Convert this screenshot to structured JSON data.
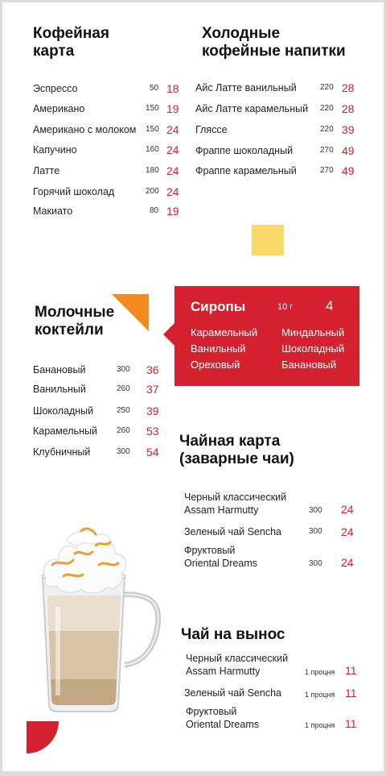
{
  "coffee": {
    "title": "Кофейная\nкарта",
    "items": [
      {
        "name": "Эспрессо",
        "volume": "50",
        "price": "18"
      },
      {
        "name": "Американо",
        "volume": "150",
        "price": "19"
      },
      {
        "name": "Американо с молоком",
        "volume": "150",
        "price": "24"
      },
      {
        "name": "Капучино",
        "volume": "160",
        "price": "24"
      },
      {
        "name": "Латте",
        "volume": "180",
        "price": "24"
      },
      {
        "name": "Горячий шоколад",
        "volume": "200",
        "price": "24"
      },
      {
        "name": "Макиато",
        "volume": "80",
        "price": "19"
      }
    ]
  },
  "cold": {
    "title": "Холодные\nкофейные напитки",
    "items": [
      {
        "name": "Айс Латте ванильный",
        "volume": "220",
        "price": "28"
      },
      {
        "name": "Айс Латте карамельный",
        "volume": "220",
        "price": "28"
      },
      {
        "name": "Гляссе",
        "volume": "220",
        "price": "39"
      },
      {
        "name": "Фраппе шоколадный",
        "volume": "270",
        "price": "49"
      },
      {
        "name": "Фраппе карамельный",
        "volume": "270",
        "price": "49"
      }
    ]
  },
  "milk": {
    "title": "Молочные\nкоктейли",
    "items": [
      {
        "name": "Банановый",
        "volume": "300",
        "price": "36"
      },
      {
        "name": "Ванильный",
        "volume": "260",
        "price": "37"
      },
      {
        "name": "Шоколадный",
        "volume": "250",
        "price": "39"
      },
      {
        "name": "Карамельный",
        "volume": "260",
        "price": "53"
      },
      {
        "name": "Клубничный",
        "volume": "300",
        "price": "54"
      }
    ]
  },
  "syrups": {
    "title": "Сиропы",
    "volume": "10 г",
    "price": "4",
    "items": [
      "Карамельный",
      "Миндальный",
      "Ванильный",
      "Шоколадный",
      "Ореховый",
      "Банановый"
    ]
  },
  "tea": {
    "title": "Чайная карта\n(заварные чаи)",
    "items": [
      {
        "name": "Черный классический\nAssam Harmutty",
        "volume": "300",
        "price": "24"
      },
      {
        "name": "Зеленый чай Sencha",
        "volume": "300",
        "price": "24"
      },
      {
        "name": "Фруктовый\nOriental Dreams",
        "volume": "300",
        "price": "24"
      }
    ]
  },
  "takeaway": {
    "title": "Чай на вынос",
    "items": [
      {
        "name": "Черный классический\nAssam Harmutty",
        "volume": "1 процня",
        "price": "11"
      },
      {
        "name": "Зеленый чай Sencha",
        "volume": "1 процня",
        "price": "11"
      },
      {
        "name": "Фруктовый\nOriental Dreams",
        "volume": "1 процня",
        "price": "11"
      }
    ]
  },
  "colors": {
    "accent_red": "#d4202f",
    "accent_orange": "#f28a1e",
    "accent_yellow": "#fbd86a"
  }
}
